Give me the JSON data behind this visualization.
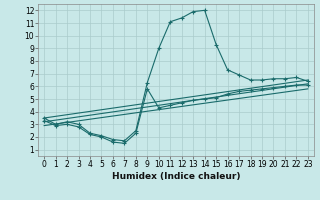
{
  "xlabel": "Humidex (Indice chaleur)",
  "xlim": [
    -0.5,
    23.5
  ],
  "ylim": [
    0.5,
    12.5
  ],
  "xticks": [
    0,
    1,
    2,
    3,
    4,
    5,
    6,
    7,
    8,
    9,
    10,
    11,
    12,
    13,
    14,
    15,
    16,
    17,
    18,
    19,
    20,
    21,
    22,
    23
  ],
  "yticks": [
    1,
    2,
    3,
    4,
    5,
    6,
    7,
    8,
    9,
    10,
    11,
    12
  ],
  "bg_color": "#c8e8e8",
  "grid_color": "#aacccc",
  "line_color": "#1a6b6b",
  "line1_x": [
    0,
    1,
    2,
    3,
    4,
    5,
    6,
    7,
    8,
    9,
    10,
    11,
    12,
    13,
    14,
    15,
    16,
    17,
    18,
    19,
    20,
    21,
    22,
    23
  ],
  "line1_y": [
    3.5,
    3.0,
    3.2,
    3.0,
    2.3,
    2.1,
    1.8,
    1.7,
    2.5,
    6.3,
    9.0,
    11.1,
    11.4,
    11.9,
    12.0,
    9.3,
    7.3,
    6.9,
    6.5,
    6.5,
    6.6,
    6.6,
    6.7,
    6.4
  ],
  "line2_x": [
    0,
    1,
    2,
    3,
    4,
    5,
    6,
    7,
    8,
    9,
    10,
    11,
    12,
    13,
    14,
    15,
    16,
    17,
    18,
    19,
    20,
    21,
    22,
    23
  ],
  "line2_y": [
    3.3,
    2.9,
    3.0,
    2.8,
    2.2,
    2.0,
    1.6,
    1.5,
    2.3,
    5.8,
    4.3,
    4.5,
    4.7,
    4.9,
    5.0,
    5.1,
    5.4,
    5.6,
    5.7,
    5.8,
    5.9,
    6.0,
    6.1,
    6.1
  ],
  "line3_x": [
    0,
    23
  ],
  "line3_y": [
    3.5,
    6.5
  ],
  "line4_x": [
    0,
    23
  ],
  "line4_y": [
    3.2,
    6.2
  ],
  "line5_x": [
    0,
    23
  ],
  "line5_y": [
    2.9,
    5.8
  ]
}
